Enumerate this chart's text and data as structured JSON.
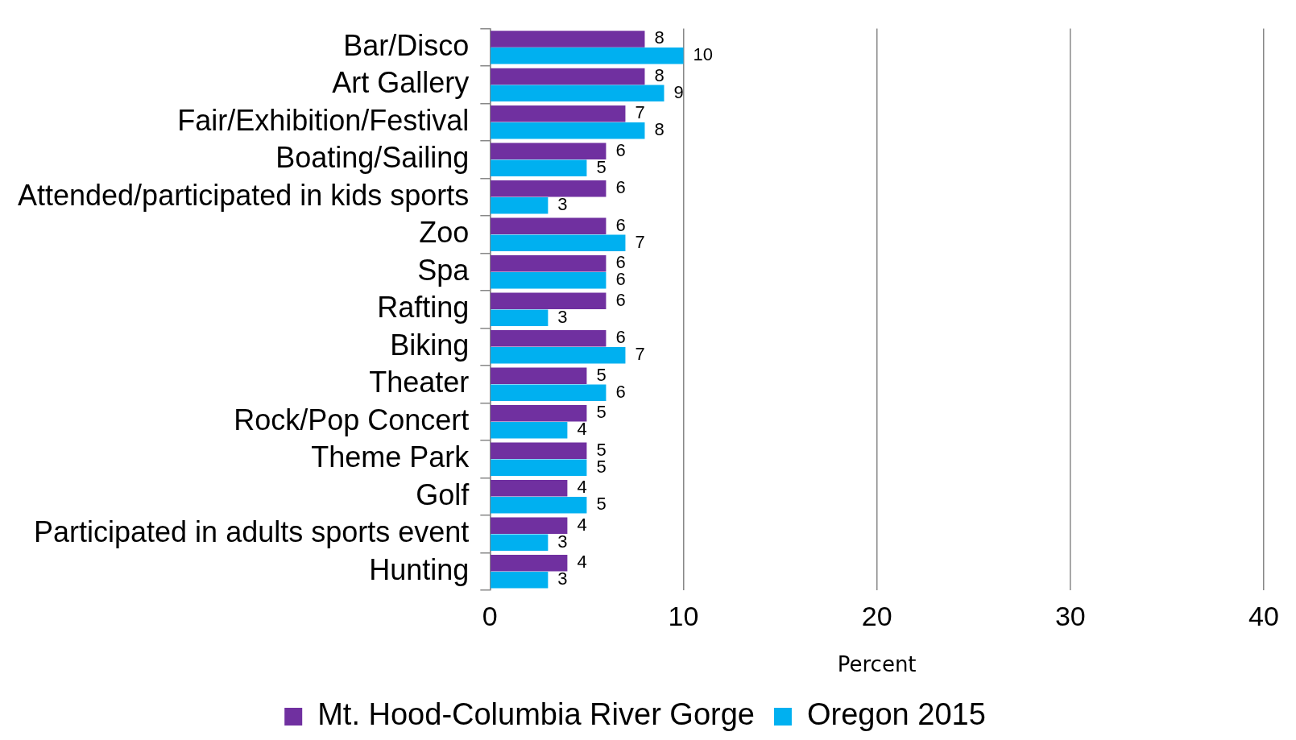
{
  "chart_data": {
    "type": "bar",
    "orientation": "horizontal",
    "xlabel": "Percent",
    "categories": [
      "Bar/Disco",
      "Art Gallery",
      "Fair/Exhibition/Festival",
      "Boating/Sailing",
      "Attended/participated in kids sports",
      "Zoo",
      "Spa",
      "Rafting",
      "Biking",
      "Theater",
      "Rock/Pop Concert",
      "Theme Park",
      "Golf",
      "Participated in adults sports event",
      "Hunting"
    ],
    "series": [
      {
        "name": "Mt. Hood-Columbia River Gorge",
        "color": "#7030a0",
        "values": [
          8,
          8,
          7,
          6,
          6,
          6,
          6,
          6,
          6,
          5,
          5,
          5,
          4,
          4,
          4
        ]
      },
      {
        "name": "Oregon 2015",
        "color": "#00b0f0",
        "values": [
          10,
          9,
          8,
          5,
          3,
          7,
          6,
          3,
          7,
          6,
          4,
          5,
          5,
          3,
          3
        ]
      }
    ],
    "xlim": [
      0,
      40
    ],
    "xticks": [
      0,
      10,
      20,
      30,
      40
    ],
    "grid": "x",
    "legend": "bottom",
    "data_labels": true
  }
}
